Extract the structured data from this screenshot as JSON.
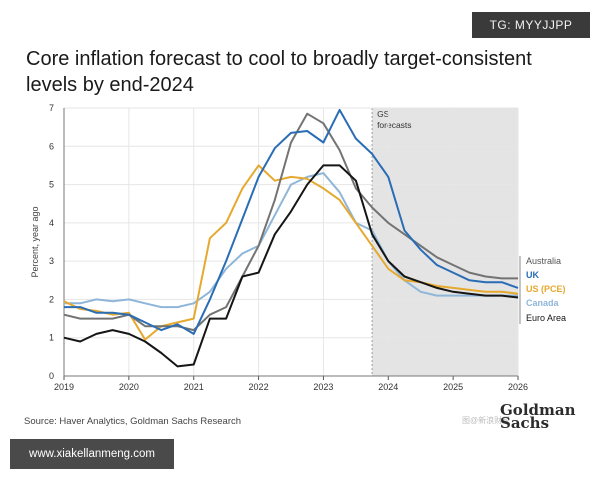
{
  "badge": {
    "text": "TG: MYYJJPP"
  },
  "title": {
    "line1": "Core inflation forecast to cool to broadly target-consistent",
    "line2": "levels by end-2024"
  },
  "source": "Source: Haver Analytics, Goldman Sachs Research",
  "logo": {
    "line1": "Goldman",
    "line2": "Sachs"
  },
  "watermark": "图@新浪财经",
  "url_box": "www.xiakellanmeng.com",
  "colors": {
    "australia": "#737373",
    "uk": "#2a6db5",
    "us_pce": "#e6a92f",
    "canada": "#8fb6d9",
    "euro_area": "#151515",
    "forecast_shade": "#e4e4e4",
    "grid": "#e6e6e6"
  },
  "chart_data": {
    "type": "line",
    "title": "Core inflation forecast to cool to broadly target-consistent levels by end-2024",
    "xlabel": "",
    "ylabel": "Percent, year ago",
    "xlim": [
      2019,
      2026
    ],
    "ylim": [
      0,
      7
    ],
    "x_ticks": [
      2019,
      2020,
      2021,
      2022,
      2023,
      2024,
      2025,
      2026
    ],
    "x_tick_labels": [
      "2019",
      "2020",
      "2021",
      "2022",
      "2023",
      "2024",
      "2025",
      "2026"
    ],
    "y_ticks": [
      0,
      1,
      2,
      3,
      4,
      5,
      6,
      7
    ],
    "y_tick_labels": [
      "0",
      "1",
      "2",
      "3",
      "4",
      "5",
      "6",
      "7"
    ],
    "grid": true,
    "forecast_region": {
      "start": 2023.75,
      "end": 2026,
      "label_line1": "GS",
      "label_line2": "forecasts"
    },
    "series": [
      {
        "name": "Canada",
        "key": "canada",
        "label": "Canada",
        "x": [
          2019,
          2019.25,
          2019.5,
          2019.75,
          2020,
          2020.25,
          2020.5,
          2020.75,
          2021,
          2021.25,
          2021.5,
          2021.75,
          2022,
          2022.25,
          2022.5,
          2022.75,
          2023,
          2023.25,
          2023.5,
          2023.75,
          2024,
          2024.25,
          2024.5,
          2024.75,
          2025,
          2025.25,
          2025.5,
          2025.75,
          2026
        ],
        "values": [
          1.9,
          1.9,
          2.0,
          1.95,
          2.0,
          1.9,
          1.8,
          1.8,
          1.9,
          2.2,
          2.8,
          3.2,
          3.4,
          4.2,
          5.0,
          5.2,
          5.3,
          4.8,
          4.0,
          3.8,
          3.0,
          2.5,
          2.2,
          2.1,
          2.1,
          2.1,
          2.1,
          2.1,
          2.1
        ]
      },
      {
        "name": "US (PCE)",
        "key": "us_pce",
        "label": "US (PCE)",
        "x": [
          2019,
          2019.25,
          2019.5,
          2019.75,
          2020,
          2020.25,
          2020.5,
          2020.75,
          2021,
          2021.25,
          2021.5,
          2021.75,
          2022,
          2022.25,
          2022.5,
          2022.75,
          2023,
          2023.25,
          2023.5,
          2023.75,
          2024,
          2024.25,
          2024.5,
          2024.75,
          2025,
          2025.25,
          2025.5,
          2025.75,
          2026
        ],
        "values": [
          1.95,
          1.75,
          1.7,
          1.6,
          1.65,
          0.95,
          1.3,
          1.4,
          1.5,
          3.6,
          4.0,
          4.9,
          5.5,
          5.1,
          5.2,
          5.15,
          4.9,
          4.6,
          4.0,
          3.4,
          2.8,
          2.5,
          2.45,
          2.35,
          2.3,
          2.25,
          2.2,
          2.2,
          2.15
        ]
      },
      {
        "name": "Australia",
        "key": "australia",
        "label": "Australia",
        "x": [
          2019,
          2019.25,
          2019.5,
          2019.75,
          2020,
          2020.25,
          2020.5,
          2020.75,
          2021,
          2021.25,
          2021.5,
          2021.75,
          2022,
          2022.25,
          2022.5,
          2022.75,
          2023,
          2023.25,
          2023.5,
          2023.75,
          2024,
          2024.25,
          2024.5,
          2024.75,
          2025,
          2025.25,
          2025.5,
          2025.75,
          2026
        ],
        "values": [
          1.6,
          1.5,
          1.5,
          1.5,
          1.6,
          1.3,
          1.3,
          1.3,
          1.2,
          1.6,
          1.8,
          2.6,
          3.4,
          4.6,
          6.1,
          6.85,
          6.6,
          5.9,
          4.9,
          4.4,
          4.0,
          3.7,
          3.4,
          3.1,
          2.9,
          2.7,
          2.6,
          2.55,
          2.55
        ]
      },
      {
        "name": "UK",
        "key": "uk",
        "label": "UK",
        "x": [
          2019,
          2019.25,
          2019.5,
          2019.75,
          2020,
          2020.25,
          2020.5,
          2020.75,
          2021,
          2021.25,
          2021.5,
          2021.75,
          2022,
          2022.25,
          2022.5,
          2022.75,
          2023,
          2023.25,
          2023.5,
          2023.75,
          2024,
          2024.25,
          2024.5,
          2024.75,
          2025,
          2025.25,
          2025.5,
          2025.75,
          2026
        ],
        "values": [
          1.8,
          1.8,
          1.65,
          1.65,
          1.6,
          1.4,
          1.2,
          1.35,
          1.1,
          2.0,
          3.0,
          4.1,
          5.2,
          5.95,
          6.35,
          6.4,
          6.1,
          6.95,
          6.2,
          5.8,
          5.2,
          3.8,
          3.3,
          2.9,
          2.7,
          2.5,
          2.45,
          2.45,
          2.3
        ]
      },
      {
        "name": "Euro Area",
        "key": "euro_area",
        "label": "Euro Area",
        "x": [
          2019,
          2019.25,
          2019.5,
          2019.75,
          2020,
          2020.25,
          2020.5,
          2020.75,
          2021,
          2021.25,
          2021.5,
          2021.75,
          2022,
          2022.25,
          2022.5,
          2022.75,
          2023,
          2023.25,
          2023.5,
          2023.75,
          2024,
          2024.25,
          2024.5,
          2024.75,
          2025,
          2025.25,
          2025.5,
          2025.75,
          2026
        ],
        "values": [
          1.0,
          0.9,
          1.1,
          1.2,
          1.1,
          0.9,
          0.6,
          0.25,
          0.3,
          1.5,
          1.5,
          2.6,
          2.7,
          3.7,
          4.3,
          5.0,
          5.5,
          5.5,
          5.1,
          3.7,
          3.0,
          2.6,
          2.45,
          2.3,
          2.2,
          2.15,
          2.1,
          2.1,
          2.05
        ]
      }
    ]
  }
}
